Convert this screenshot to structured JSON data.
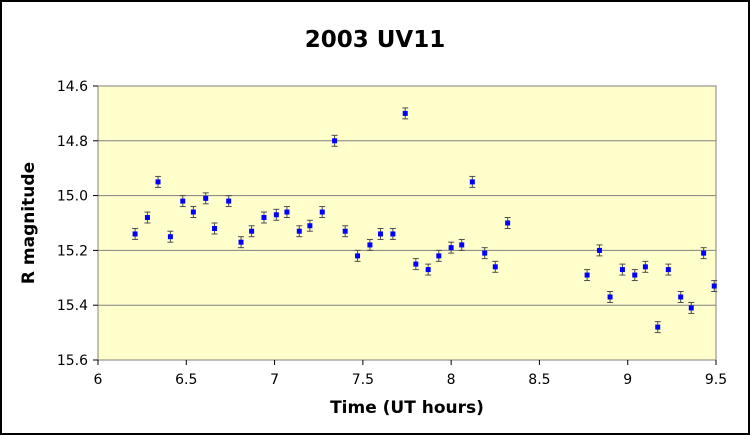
{
  "colors": {
    "outer_border": "#000000",
    "plot_background": "#FFFFCC",
    "gridline": "#808080",
    "point": "#0000FF",
    "error_bar": "#4D4D4D"
  },
  "chart_data": {
    "type": "scatter",
    "title": "2003 UV11",
    "xlabel": "Time (UT hours)",
    "ylabel": "R magnitude",
    "xlim": [
      6,
      9.5
    ],
    "ylim": [
      14.6,
      15.6
    ],
    "y_inverted": true,
    "x_ticks": [
      "6",
      "6.5",
      "7",
      "7.5",
      "8",
      "8.5",
      "9",
      "9.5"
    ],
    "y_ticks": [
      "14.6",
      "14.8",
      "15.0",
      "15.2",
      "15.4",
      "15.6"
    ],
    "grid": "horizontal",
    "legend": "none",
    "error_bar": 0.02,
    "series": [
      {
        "marker": "square",
        "x": [
          6.21,
          6.28,
          6.34,
          6.41,
          6.48,
          6.54,
          6.61,
          6.66,
          6.74,
          6.81,
          6.87,
          6.94,
          7.01,
          7.07,
          7.14,
          7.2,
          7.27,
          7.34,
          7.4,
          7.47,
          7.54,
          7.6,
          7.67,
          7.74,
          7.8,
          7.87,
          7.93,
          8.0,
          8.06,
          8.12,
          8.19,
          8.25,
          8.32,
          8.77,
          8.84,
          8.9,
          8.97,
          9.04,
          9.1,
          9.17,
          9.23,
          9.3,
          9.36,
          9.43,
          9.49
        ],
        "y": [
          15.14,
          15.08,
          14.95,
          15.15,
          15.02,
          15.06,
          15.01,
          15.12,
          15.02,
          15.17,
          15.13,
          15.08,
          15.07,
          15.06,
          15.13,
          15.11,
          15.06,
          14.8,
          15.13,
          15.22,
          15.18,
          15.14,
          15.14,
          14.7,
          15.25,
          15.27,
          15.22,
          15.19,
          15.18,
          14.95,
          15.21,
          15.26,
          15.1,
          15.29,
          15.2,
          15.37,
          15.27,
          15.29,
          15.26,
          15.48,
          15.27,
          15.37,
          15.41,
          15.21,
          15.33
        ]
      }
    ]
  }
}
